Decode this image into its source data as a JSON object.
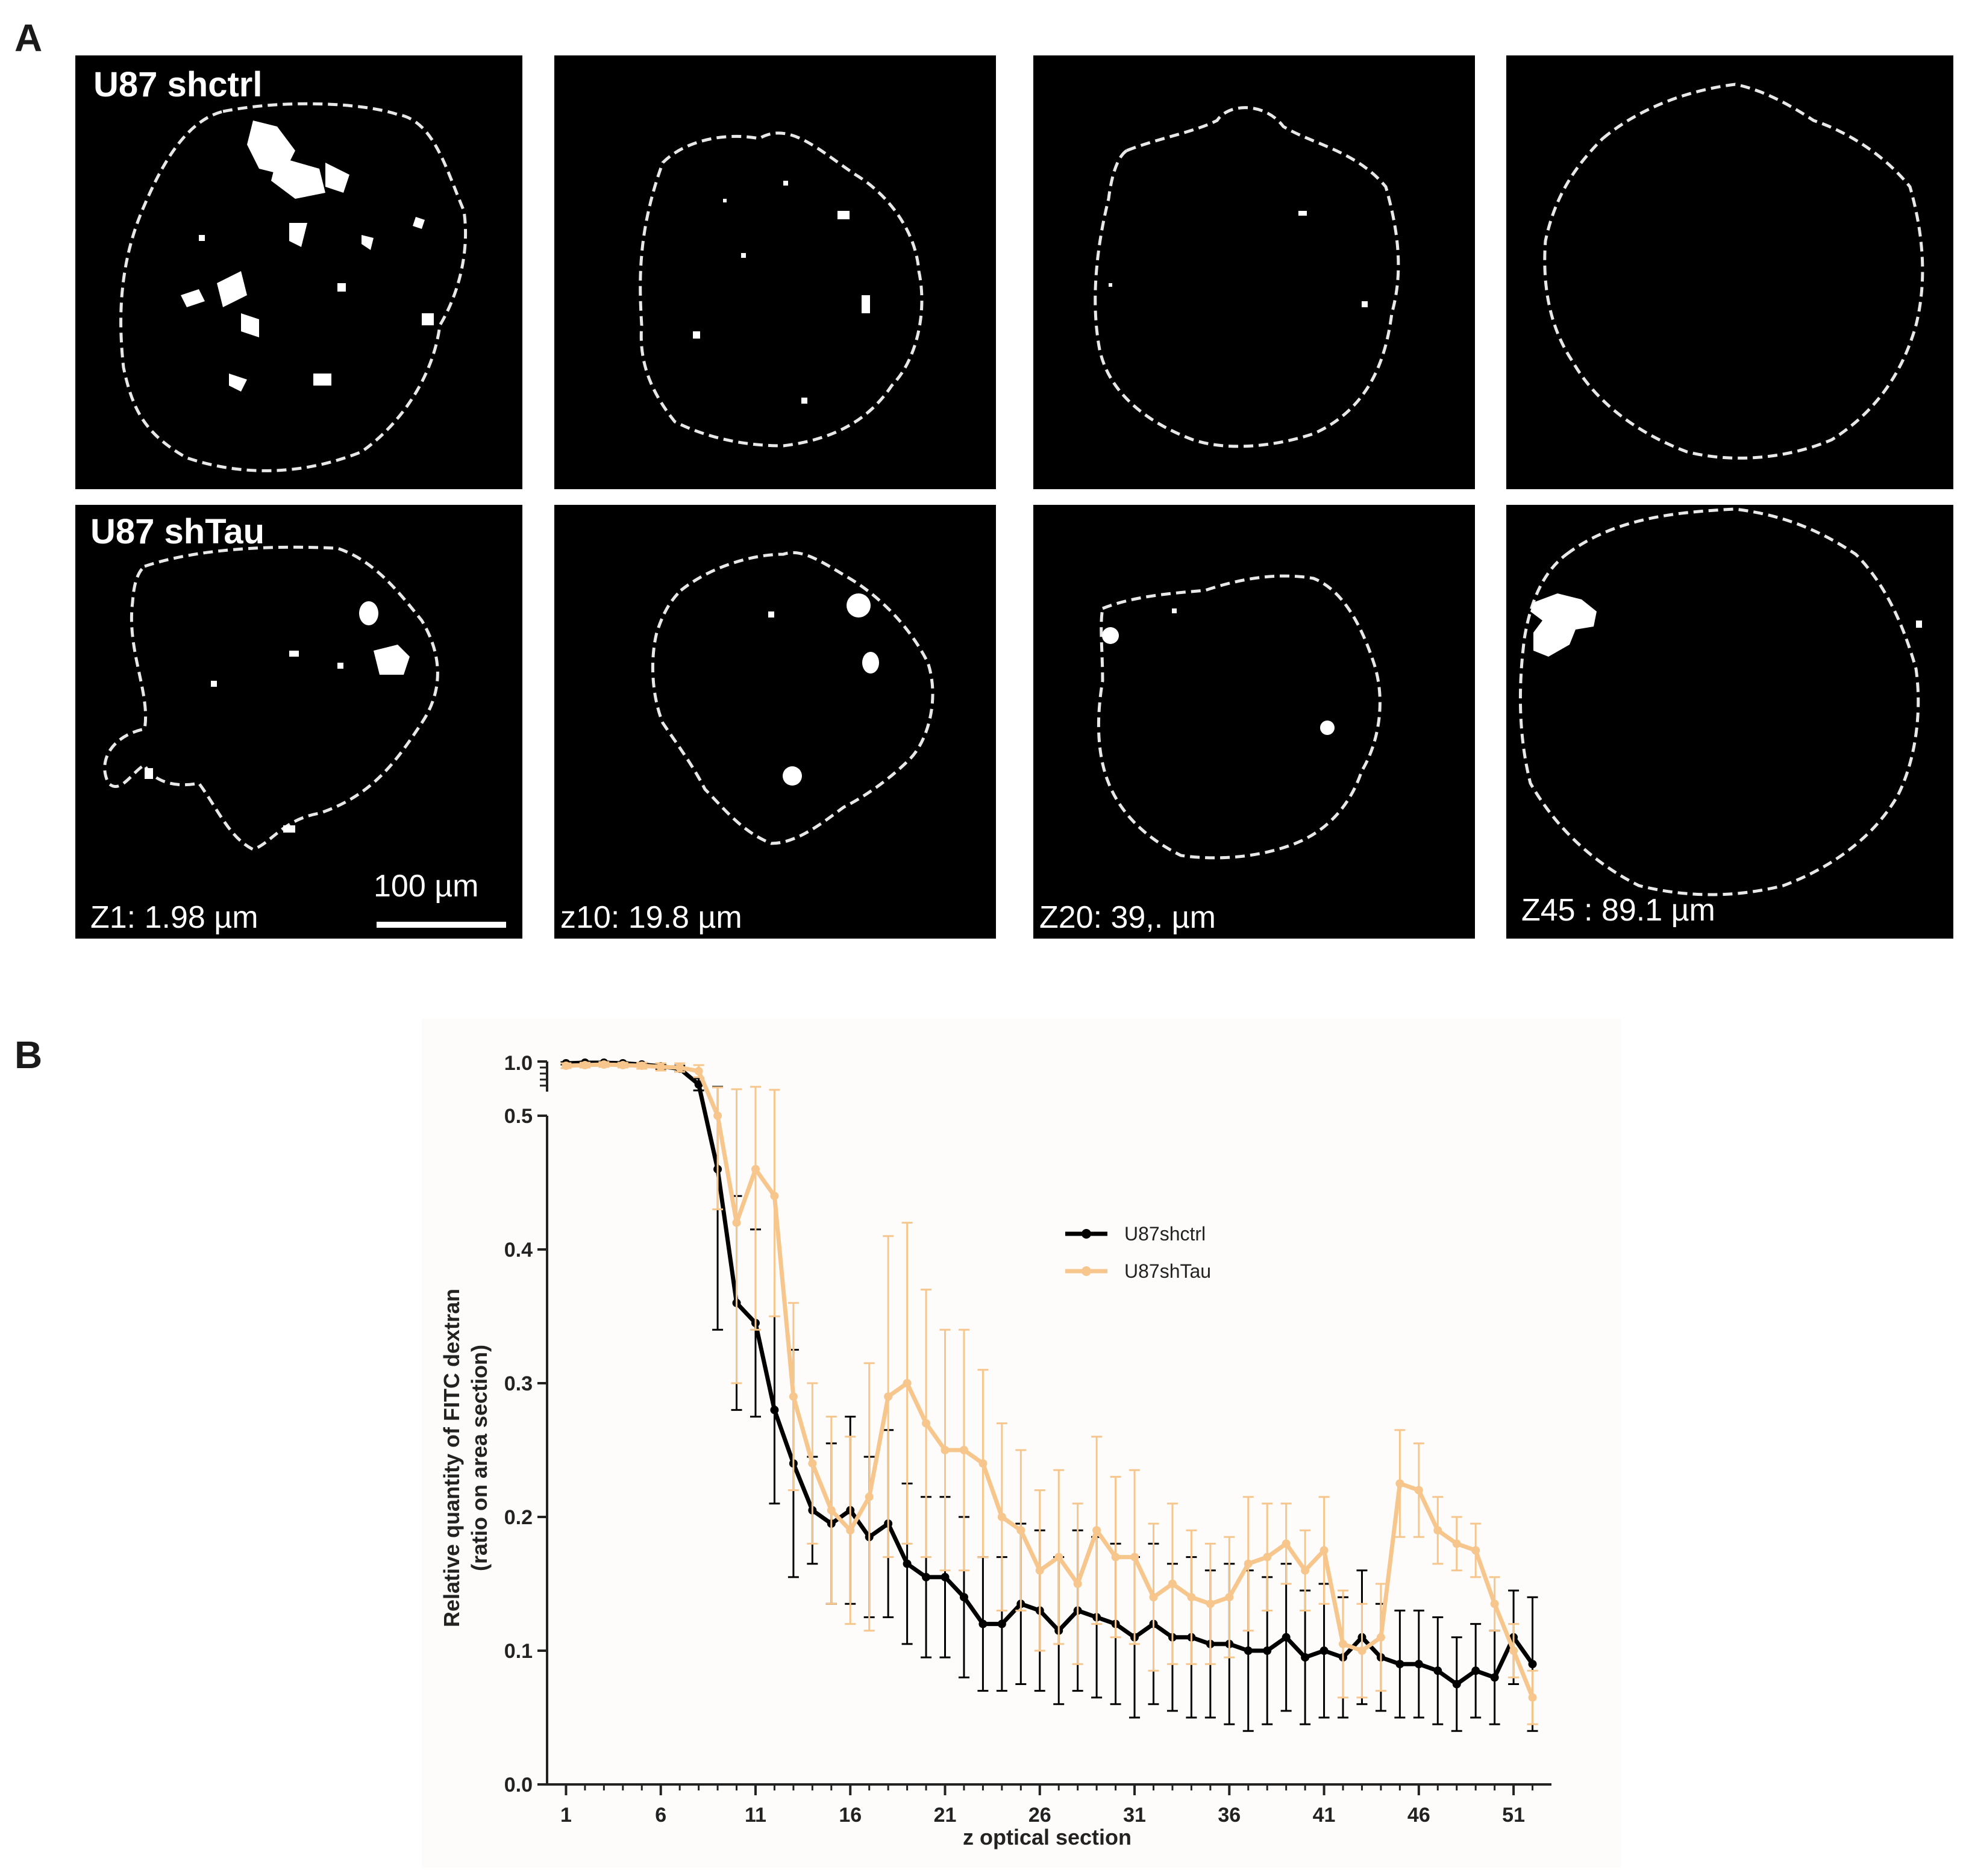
{
  "panel_a": {
    "letter": "A",
    "row_labels": [
      "U87 shctrl",
      "U87 shTau"
    ],
    "z_labels": [
      "Z1: 1.98 µm",
      "z10: 19.8 µm",
      "Z20: 39,. µm",
      "Z45 : 89.1 µm"
    ],
    "scale_bar_label": "100 µm"
  },
  "panel_b": {
    "letter": "B"
  },
  "chart_data": {
    "type": "line",
    "xlabel": "z optical section",
    "ylabel_line1": "Relative quantity of FITC dextran",
    "ylabel_line2": "(ratio on area section)",
    "x": [
      1,
      2,
      3,
      4,
      5,
      6,
      7,
      8,
      9,
      10,
      11,
      12,
      13,
      14,
      15,
      16,
      17,
      18,
      19,
      20,
      21,
      22,
      23,
      24,
      25,
      26,
      27,
      28,
      29,
      30,
      31,
      32,
      33,
      34,
      35,
      36,
      37,
      38,
      39,
      40,
      41,
      42,
      43,
      44,
      45,
      46,
      47,
      48,
      49,
      50,
      51,
      52
    ],
    "xticks": [
      1,
      6,
      11,
      16,
      21,
      26,
      31,
      36,
      41,
      46,
      51
    ],
    "yticks_main": [
      0.0,
      0.1,
      0.2,
      0.3,
      0.4,
      0.5
    ],
    "ylim_main": [
      0,
      0.5
    ],
    "ytick_top_label": "1.0",
    "ylim_top": [
      0.5,
      1.0
    ],
    "legend_position": "upper-center",
    "series": [
      {
        "name": "U87shctrl",
        "color": "#000000",
        "values": [
          0.97,
          0.98,
          0.98,
          0.97,
          0.95,
          0.92,
          0.88,
          0.62,
          0.46,
          0.36,
          0.345,
          0.28,
          0.24,
          0.205,
          0.195,
          0.205,
          0.185,
          0.195,
          0.165,
          0.155,
          0.155,
          0.14,
          0.12,
          0.12,
          0.135,
          0.13,
          0.115,
          0.13,
          0.125,
          0.12,
          0.11,
          0.12,
          0.11,
          0.11,
          0.105,
          0.105,
          0.1,
          0.1,
          0.11,
          0.095,
          0.1,
          0.095,
          0.11,
          0.095,
          0.09,
          0.09,
          0.085,
          0.075,
          0.085,
          0.08,
          0.11,
          0.09
        ],
        "errors": [
          0.02,
          0.02,
          0.02,
          0.02,
          0.03,
          0.04,
          0.05,
          0.1,
          0.12,
          0.08,
          0.07,
          0.07,
          0.085,
          0.04,
          0.06,
          0.07,
          0.06,
          0.07,
          0.06,
          0.06,
          0.06,
          0.06,
          0.05,
          0.05,
          0.06,
          0.06,
          0.055,
          0.06,
          0.06,
          0.06,
          0.06,
          0.06,
          0.055,
          0.06,
          0.055,
          0.06,
          0.06,
          0.055,
          0.055,
          0.05,
          0.05,
          0.045,
          0.05,
          0.04,
          0.04,
          0.04,
          0.04,
          0.035,
          0.035,
          0.035,
          0.035,
          0.05
        ]
      },
      {
        "name": "U87shTau",
        "color": "#f6c68c",
        "values": [
          0.93,
          0.94,
          0.95,
          0.94,
          0.93,
          0.91,
          0.9,
          0.84,
          0.5,
          0.42,
          0.46,
          0.44,
          0.29,
          0.24,
          0.205,
          0.19,
          0.215,
          0.29,
          0.3,
          0.27,
          0.25,
          0.25,
          0.24,
          0.2,
          0.19,
          0.16,
          0.17,
          0.15,
          0.19,
          0.17,
          0.17,
          0.14,
          0.15,
          0.14,
          0.135,
          0.14,
          0.165,
          0.17,
          0.18,
          0.16,
          0.175,
          0.105,
          0.1,
          0.11,
          0.225,
          0.22,
          0.19,
          0.18,
          0.175,
          0.135,
          0.1,
          0.065
        ],
        "errors": [
          0.04,
          0.04,
          0.04,
          0.04,
          0.05,
          0.06,
          0.07,
          0.1,
          0.07,
          0.12,
          0.12,
          0.09,
          0.07,
          0.06,
          0.07,
          0.07,
          0.1,
          0.12,
          0.12,
          0.1,
          0.09,
          0.09,
          0.07,
          0.07,
          0.06,
          0.06,
          0.065,
          0.06,
          0.07,
          0.06,
          0.065,
          0.055,
          0.06,
          0.05,
          0.045,
          0.045,
          0.05,
          0.04,
          0.03,
          0.03,
          0.04,
          0.04,
          0.035,
          0.04,
          0.04,
          0.035,
          0.025,
          0.02,
          0.02,
          0.02,
          0.02,
          0.02
        ]
      }
    ]
  }
}
